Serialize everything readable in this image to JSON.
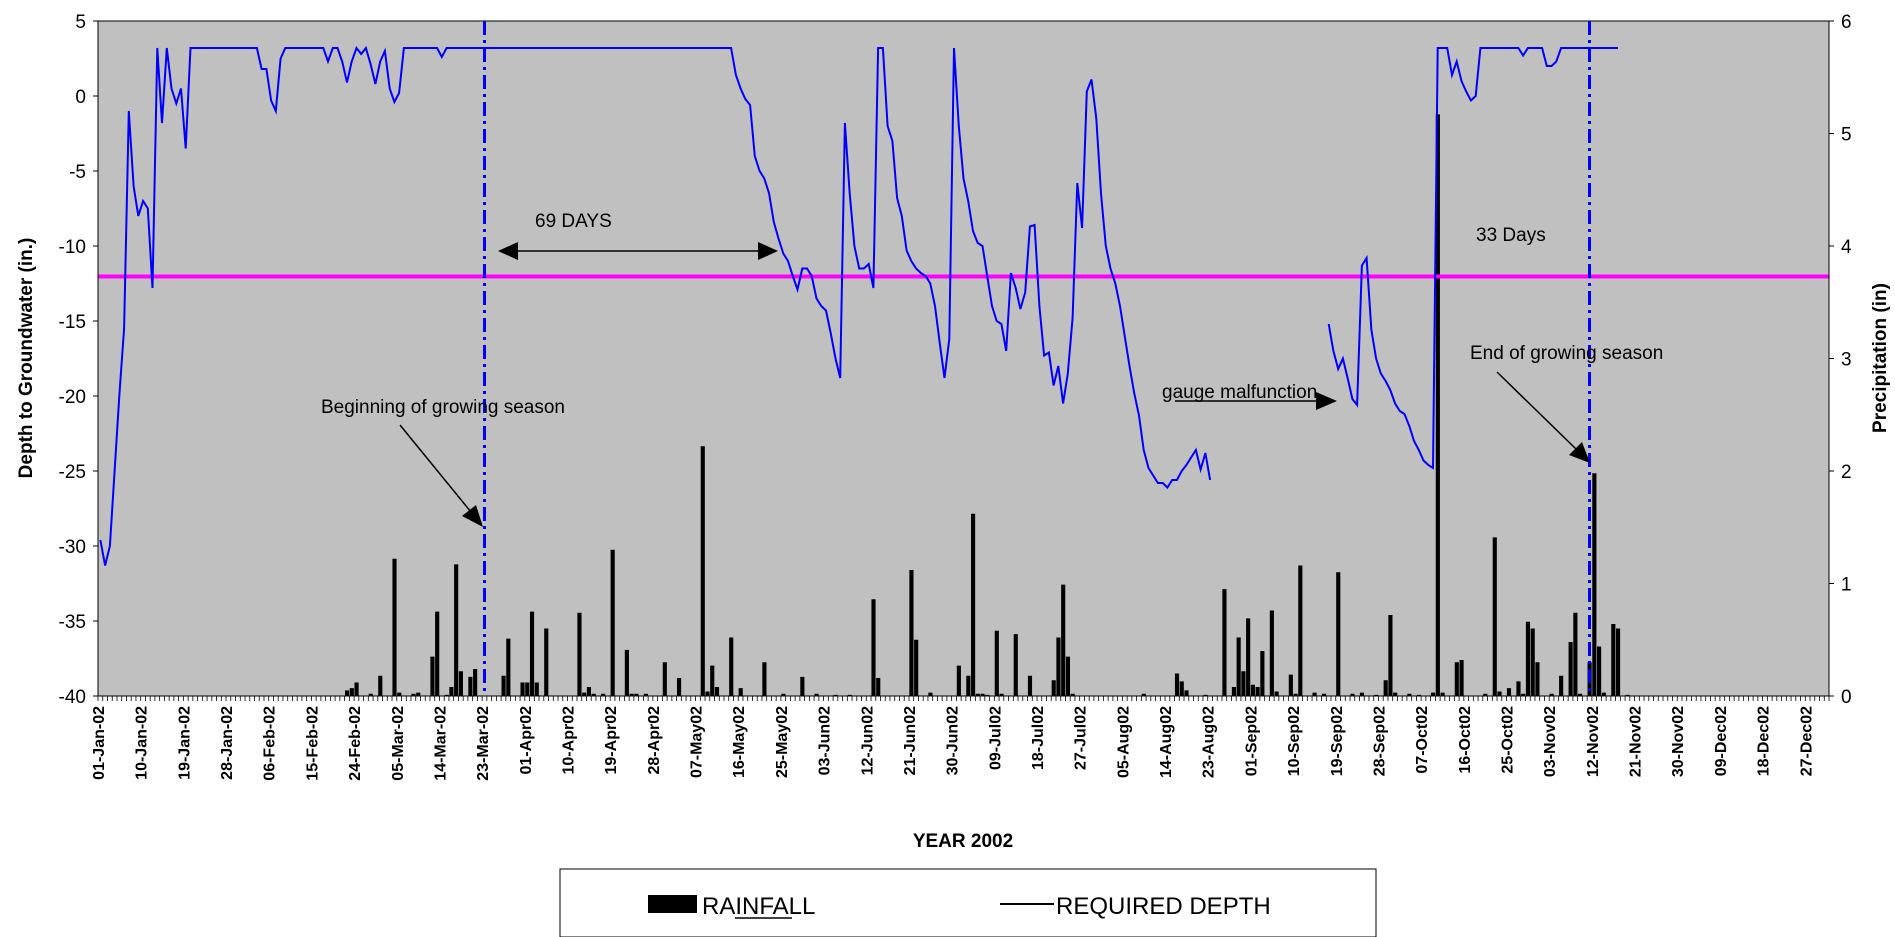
{
  "chart_data": {
    "type": "bar+line",
    "title": "",
    "xlabel": "YEAR 2002",
    "ylabel_left": "Depth to Groundwater (in.)",
    "ylabel_right": "Precipitation (in)",
    "ylim_left": [
      -40,
      5
    ],
    "ylim_right": [
      0,
      6
    ],
    "left_ticks": [
      "5",
      "0",
      "-5",
      "-10",
      "-15",
      "-20",
      "-25",
      "-30",
      "-35",
      "-40"
    ],
    "right_ticks": [
      "6",
      "5",
      "4",
      "3",
      "2",
      "1",
      "0"
    ],
    "x_start": "2002-01-01",
    "x_end": "2002-12-31",
    "x_tick_labels": [
      "01-Jan-02",
      "10-Jan-02",
      "19-Jan-02",
      "28-Jan-02",
      "06-Feb-02",
      "15-Feb-02",
      "24-Feb-02",
      "05-Mar-02",
      "14-Mar-02",
      "23-Mar-02",
      "01-Apr02",
      "10-Apr02",
      "19-Apr02",
      "28-Apr02",
      "07-May02",
      "16-May02",
      "25-May02",
      "03-Jun02",
      "12-Jun02",
      "21-Jun02",
      "30-Jun02",
      "09-Jul02",
      "18-Jul02",
      "27-Jul02",
      "05-Aug02",
      "14-Aug02",
      "23-Aug02",
      "01-Sep02",
      "10-Sep02",
      "19-Sep02",
      "28-Sep02",
      "07-Oct02",
      "16-Oct02",
      "25-Oct02",
      "03-Nov02",
      "12-Nov02",
      "21-Nov02",
      "30-Nov02",
      "09-Dec02",
      "18-Dec02",
      "27-Dec02"
    ],
    "grid": false,
    "background": "#c0c0c0",
    "required_depth": -12,
    "required_depth_color": "#ff00ff",
    "depth_color": "#0000ff",
    "rain_color": "#000000",
    "growing_season_lines": [
      "2002-03-23",
      "2002-11-11"
    ],
    "depth_series": [
      [
        [
          "2002-01-01",
          -29.6
        ],
        [
          "2002-01-02",
          -31.3
        ],
        [
          "2002-01-03",
          -30
        ],
        [
          "2002-01-04",
          -25
        ],
        [
          "2002-01-05",
          -20
        ],
        [
          "2002-01-06",
          -15.5
        ],
        [
          "2002-01-07",
          -1
        ],
        [
          "2002-01-08",
          -6
        ],
        [
          "2002-01-09",
          -8
        ],
        [
          "2002-01-10",
          -7
        ],
        [
          "2002-01-11",
          -7.5
        ],
        [
          "2002-01-12",
          -12.8
        ],
        [
          "2002-01-13",
          3.2
        ],
        [
          "2002-01-14",
          -1.8
        ],
        [
          "2002-01-15",
          3.2
        ],
        [
          "2002-01-16",
          0.5
        ],
        [
          "2002-01-17",
          -0.5
        ],
        [
          "2002-01-18",
          0.5
        ],
        [
          "2002-01-19",
          -3.5
        ],
        [
          "2002-01-20",
          3.2
        ],
        [
          "2002-02-03",
          3.2
        ],
        [
          "2002-02-04",
          1.8
        ],
        [
          "2002-02-05",
          1.8
        ],
        [
          "2002-02-06",
          -0.3
        ],
        [
          "2002-02-07",
          -1
        ],
        [
          "2002-02-08",
          2.5
        ],
        [
          "2002-02-09",
          3.2
        ],
        [
          "2002-02-17",
          3.2
        ],
        [
          "2002-02-18",
          2.3
        ],
        [
          "2002-02-19",
          3.2
        ],
        [
          "2002-02-20",
          3.2
        ],
        [
          "2002-02-21",
          2.3
        ],
        [
          "2002-02-22",
          0.9
        ],
        [
          "2002-02-23",
          2.3
        ],
        [
          "2002-02-24",
          3.2
        ],
        [
          "2002-02-25",
          2.8
        ],
        [
          "2002-02-26",
          3.2
        ],
        [
          "2002-02-27",
          2.1
        ],
        [
          "2002-02-28",
          0.8
        ],
        [
          "2002-03-01",
          2.3
        ],
        [
          "2002-03-02",
          3
        ],
        [
          "2002-03-03",
          0.5
        ],
        [
          "2002-03-04",
          -0.4
        ],
        [
          "2002-03-05",
          0.2
        ],
        [
          "2002-03-06",
          3.2
        ],
        [
          "2002-03-13",
          3.2
        ],
        [
          "2002-03-14",
          2.6
        ],
        [
          "2002-03-15",
          3.2
        ],
        [
          "2002-05-14",
          3.2
        ],
        [
          "2002-05-15",
          1.4
        ],
        [
          "2002-05-16",
          0.5
        ],
        [
          "2002-05-17",
          -0.2
        ],
        [
          "2002-05-18",
          -0.6
        ],
        [
          "2002-05-19",
          -4
        ],
        [
          "2002-05-20",
          -5
        ],
        [
          "2002-05-21",
          -5.5
        ],
        [
          "2002-05-22",
          -6.5
        ],
        [
          "2002-05-23",
          -8.4
        ],
        [
          "2002-05-24",
          -9.5
        ],
        [
          "2002-05-25",
          -10.5
        ],
        [
          "2002-05-26",
          -11
        ],
        [
          "2002-05-27",
          -12
        ],
        [
          "2002-05-28",
          -12.9
        ],
        [
          "2002-05-29",
          -11.5
        ],
        [
          "2002-05-30",
          -11.5
        ],
        [
          "2002-05-31",
          -12
        ],
        [
          "2002-06-01",
          -13.5
        ],
        [
          "2002-06-02",
          -14
        ],
        [
          "2002-06-03",
          -14.3
        ],
        [
          "2002-06-04",
          -15.8
        ],
        [
          "2002-06-05",
          -17.5
        ],
        [
          "2002-06-06",
          -18.8
        ],
        [
          "2002-06-07",
          -1.8
        ],
        [
          "2002-06-08",
          -6.5
        ],
        [
          "2002-06-09",
          -10
        ],
        [
          "2002-06-10",
          -11.5
        ],
        [
          "2002-06-11",
          -11.5
        ],
        [
          "2002-06-12",
          -11.2
        ],
        [
          "2002-06-13",
          -12.8
        ],
        [
          "2002-06-14",
          3.2
        ],
        [
          "2002-06-15",
          3.2
        ],
        [
          "2002-06-16",
          -2
        ],
        [
          "2002-06-17",
          -3
        ],
        [
          "2002-06-18",
          -6.8
        ],
        [
          "2002-06-19",
          -8
        ],
        [
          "2002-06-20",
          -10.3
        ],
        [
          "2002-06-21",
          -11
        ],
        [
          "2002-06-22",
          -11.5
        ],
        [
          "2002-06-23",
          -11.8
        ],
        [
          "2002-06-24",
          -12
        ],
        [
          "2002-06-25",
          -12.5
        ],
        [
          "2002-06-26",
          -14
        ],
        [
          "2002-06-27",
          -16.5
        ],
        [
          "2002-06-28",
          -18.8
        ],
        [
          "2002-06-29",
          -16.2
        ],
        [
          "2002-06-30",
          3.2
        ],
        [
          "2002-07-01",
          -2
        ],
        [
          "2002-07-02",
          -5.5
        ],
        [
          "2002-07-03",
          -7
        ],
        [
          "2002-07-04",
          -9
        ],
        [
          "2002-07-05",
          -9.8
        ],
        [
          "2002-07-06",
          -10
        ],
        [
          "2002-07-07",
          -12
        ],
        [
          "2002-07-08",
          -14
        ],
        [
          "2002-07-09",
          -15
        ],
        [
          "2002-07-10",
          -15.2
        ],
        [
          "2002-07-11",
          -17
        ],
        [
          "2002-07-12",
          -11.8
        ],
        [
          "2002-07-13",
          -12.8
        ],
        [
          "2002-07-14",
          -14.2
        ],
        [
          "2002-07-15",
          -13.1
        ],
        [
          "2002-07-16",
          -8.7
        ],
        [
          "2002-07-17",
          -8.6
        ],
        [
          "2002-07-18",
          -14
        ],
        [
          "2002-07-19",
          -17.3
        ],
        [
          "2002-07-20",
          -17.1
        ],
        [
          "2002-07-21",
          -19.3
        ],
        [
          "2002-07-22",
          -18
        ],
        [
          "2002-07-23",
          -20.5
        ],
        [
          "2002-07-24",
          -18.5
        ],
        [
          "2002-07-25",
          -14.8
        ],
        [
          "2002-07-26",
          -5.8
        ],
        [
          "2002-07-27",
          -8.8
        ],
        [
          "2002-07-28",
          0.3
        ],
        [
          "2002-07-29",
          1.1
        ],
        [
          "2002-07-30",
          -1.5
        ],
        [
          "2002-07-31",
          -6.5
        ],
        [
          "2002-08-01",
          -10
        ],
        [
          "2002-08-02",
          -11.5
        ],
        [
          "2002-08-03",
          -12.5
        ],
        [
          "2002-08-04",
          -14
        ],
        [
          "2002-08-05",
          -16
        ],
        [
          "2002-08-06",
          -18
        ],
        [
          "2002-08-07",
          -19.8
        ],
        [
          "2002-08-08",
          -21.3
        ],
        [
          "2002-08-09",
          -23.6
        ],
        [
          "2002-08-10",
          -24.8
        ],
        [
          "2002-08-11",
          -25.3
        ],
        [
          "2002-08-12",
          -25.8
        ],
        [
          "2002-08-13",
          -25.8
        ],
        [
          "2002-08-14",
          -26.1
        ],
        [
          "2002-08-15",
          -25.6
        ],
        [
          "2002-08-16",
          -25.6
        ],
        [
          "2002-08-17",
          -25
        ],
        [
          "2002-08-18",
          -24.6
        ],
        [
          "2002-08-19",
          -24.1
        ],
        [
          "2002-08-20",
          -23.6
        ],
        [
          "2002-08-21",
          -24.9
        ],
        [
          "2002-08-22",
          -23.8
        ],
        [
          "2002-08-23",
          -25.6
        ]
      ],
      [
        [
          "2002-09-17",
          -15.2
        ],
        [
          "2002-09-18",
          -17
        ],
        [
          "2002-09-19",
          -18.2
        ],
        [
          "2002-09-20",
          -17.5
        ],
        [
          "2002-09-21",
          -18.8
        ],
        [
          "2002-09-22",
          -20.2
        ],
        [
          "2002-09-23",
          -20.6
        ],
        [
          "2002-09-24",
          -11.3
        ],
        [
          "2002-09-25",
          -10.8
        ],
        [
          "2002-09-26",
          -15.6
        ],
        [
          "2002-09-27",
          -17.5
        ],
        [
          "2002-09-28",
          -18.5
        ],
        [
          "2002-09-29",
          -19
        ],
        [
          "2002-09-30",
          -19.6
        ],
        [
          "2002-10-01",
          -20.5
        ],
        [
          "2002-10-02",
          -21
        ],
        [
          "2002-10-03",
          -21.2
        ],
        [
          "2002-10-04",
          -22
        ],
        [
          "2002-10-05",
          -23
        ],
        [
          "2002-10-06",
          -23.6
        ],
        [
          "2002-10-07",
          -24.3
        ],
        [
          "2002-10-08",
          -24.6
        ],
        [
          "2002-10-09",
          -24.8
        ],
        [
          "2002-10-10",
          3.2
        ],
        [
          "2002-10-11",
          3.2
        ],
        [
          "2002-10-12",
          3.2
        ],
        [
          "2002-10-13",
          1.4
        ],
        [
          "2002-10-14",
          2.3
        ],
        [
          "2002-10-15",
          1
        ],
        [
          "2002-10-16",
          0.3
        ],
        [
          "2002-10-17",
          -0.3
        ],
        [
          "2002-10-18",
          0
        ],
        [
          "2002-10-19",
          3.2
        ],
        [
          "2002-10-27",
          3.2
        ],
        [
          "2002-10-28",
          2.7
        ],
        [
          "2002-10-29",
          3.2
        ],
        [
          "2002-11-01",
          3.2
        ],
        [
          "2002-11-02",
          2
        ],
        [
          "2002-11-03",
          2
        ],
        [
          "2002-11-04",
          2.3
        ],
        [
          "2002-11-05",
          3.2
        ],
        [
          "2002-11-17",
          3.2
        ]
      ]
    ],
    "rainfall": [
      [
        "2002-02-22",
        0.05
      ],
      [
        "2002-02-23",
        0.07
      ],
      [
        "2002-02-24",
        0.12
      ],
      [
        "2002-02-27",
        0.02
      ],
      [
        "2002-03-01",
        0.18
      ],
      [
        "2002-03-04",
        1.22
      ],
      [
        "2002-03-05",
        0.03
      ],
      [
        "2002-03-08",
        0.02
      ],
      [
        "2002-03-09",
        0.03
      ],
      [
        "2002-03-12",
        0.35
      ],
      [
        "2002-03-13",
        0.75
      ],
      [
        "2002-03-15",
        0.01
      ],
      [
        "2002-03-16",
        0.08
      ],
      [
        "2002-03-17",
        1.17
      ],
      [
        "2002-03-18",
        0.22
      ],
      [
        "2002-03-20",
        0.17
      ],
      [
        "2002-03-21",
        0.24
      ],
      [
        "2002-03-27",
        0.18
      ],
      [
        "2002-03-28",
        0.51
      ],
      [
        "2002-03-31",
        0.12
      ],
      [
        "2002-04-01",
        0.12
      ],
      [
        "2002-04-02",
        0.75
      ],
      [
        "2002-04-03",
        0.12
      ],
      [
        "2002-04-05",
        0.6
      ],
      [
        "2002-04-12",
        0.74
      ],
      [
        "2002-04-13",
        0.03
      ],
      [
        "2002-04-14",
        0.08
      ],
      [
        "2002-04-15",
        0.02
      ],
      [
        "2002-04-17",
        0.02
      ],
      [
        "2002-04-19",
        1.3
      ],
      [
        "2002-04-22",
        0.41
      ],
      [
        "2002-04-23",
        0.02
      ],
      [
        "2002-04-24",
        0.02
      ],
      [
        "2002-04-26",
        0.02
      ],
      [
        "2002-04-30",
        0.3
      ],
      [
        "2002-05-03",
        0.16
      ],
      [
        "2002-05-08",
        2.22
      ],
      [
        "2002-05-09",
        0.04
      ],
      [
        "2002-05-10",
        0.27
      ],
      [
        "2002-05-11",
        0.08
      ],
      [
        "2002-05-14",
        0.52
      ],
      [
        "2002-05-16",
        0.07
      ],
      [
        "2002-05-21",
        0.3
      ],
      [
        "2002-05-25",
        0.02
      ],
      [
        "2002-05-29",
        0.17
      ],
      [
        "2002-06-01",
        0.02
      ],
      [
        "2002-06-05",
        0.01
      ],
      [
        "2002-06-08",
        0.01
      ],
      [
        "2002-06-13",
        0.86
      ],
      [
        "2002-06-14",
        0.16
      ],
      [
        "2002-06-21",
        1.12
      ],
      [
        "2002-06-22",
        0.5
      ],
      [
        "2002-06-25",
        0.03
      ],
      [
        "2002-07-01",
        0.27
      ],
      [
        "2002-07-03",
        0.18
      ],
      [
        "2002-07-04",
        1.62
      ],
      [
        "2002-07-05",
        0.02
      ],
      [
        "2002-07-06",
        0.02
      ],
      [
        "2002-07-07",
        0.01
      ],
      [
        "2002-07-09",
        0.58
      ],
      [
        "2002-07-10",
        0.02
      ],
      [
        "2002-07-13",
        0.55
      ],
      [
        "2002-07-16",
        0.18
      ],
      [
        "2002-07-21",
        0.14
      ],
      [
        "2002-07-22",
        0.52
      ],
      [
        "2002-07-23",
        0.99
      ],
      [
        "2002-07-24",
        0.35
      ],
      [
        "2002-07-25",
        0.02
      ],
      [
        "2002-08-09",
        0.02
      ],
      [
        "2002-08-16",
        0.2
      ],
      [
        "2002-08-17",
        0.13
      ],
      [
        "2002-08-18",
        0.05
      ],
      [
        "2002-08-22",
        0.01
      ],
      [
        "2002-08-26",
        0.95
      ],
      [
        "2002-08-28",
        0.08
      ],
      [
        "2002-08-29",
        0.52
      ],
      [
        "2002-08-30",
        0.22
      ],
      [
        "2002-08-31",
        0.69
      ],
      [
        "2002-09-01",
        0.1
      ],
      [
        "2002-09-02",
        0.08
      ],
      [
        "2002-09-03",
        0.4
      ],
      [
        "2002-09-05",
        0.76
      ],
      [
        "2002-09-06",
        0.04
      ],
      [
        "2002-09-09",
        0.19
      ],
      [
        "2002-09-10",
        0.02
      ],
      [
        "2002-09-11",
        1.16
      ],
      [
        "2002-09-14",
        0.03
      ],
      [
        "2002-09-16",
        0.02
      ],
      [
        "2002-09-19",
        1.1
      ],
      [
        "2002-09-22",
        0.02
      ],
      [
        "2002-09-24",
        0.03
      ],
      [
        "2002-09-27",
        0.01
      ],
      [
        "2002-09-29",
        0.14
      ],
      [
        "2002-09-30",
        0.72
      ],
      [
        "2002-10-01",
        0.03
      ],
      [
        "2002-10-04",
        0.02
      ],
      [
        "2002-10-06",
        0.01
      ],
      [
        "2002-10-09",
        0.03
      ],
      [
        "2002-10-10",
        5.17
      ],
      [
        "2002-10-11",
        0.03
      ],
      [
        "2002-10-14",
        0.3
      ],
      [
        "2002-10-15",
        0.32
      ],
      [
        "2002-10-20",
        0.02
      ],
      [
        "2002-10-22",
        1.41
      ],
      [
        "2002-10-23",
        0.04
      ],
      [
        "2002-10-25",
        0.07
      ],
      [
        "2002-10-27",
        0.13
      ],
      [
        "2002-10-28",
        0.02
      ],
      [
        "2002-10-29",
        0.66
      ],
      [
        "2002-10-30",
        0.6
      ],
      [
        "2002-10-31",
        0.3
      ],
      [
        "2002-11-03",
        0.02
      ],
      [
        "2002-11-05",
        0.18
      ],
      [
        "2002-11-07",
        0.48
      ],
      [
        "2002-11-08",
        0.74
      ],
      [
        "2002-11-09",
        0.02
      ],
      [
        "2002-11-11",
        0.3
      ],
      [
        "2002-11-12",
        1.98
      ],
      [
        "2002-11-13",
        0.44
      ],
      [
        "2002-11-14",
        0.03
      ],
      [
        "2002-11-16",
        0.64
      ],
      [
        "2002-11-17",
        0.6
      ],
      [
        "2002-11-19",
        0.01
      ]
    ]
  },
  "annotations": {
    "days_69": "69 DAYS",
    "days_33": "33 Days",
    "gauge": "gauge malfunction",
    "beginning": "Beginning of growing season",
    "end": "End of growing season"
  },
  "legend": {
    "rainfall_label": "RAINFALL",
    "required_label": "REQUIRED DEPTH"
  }
}
